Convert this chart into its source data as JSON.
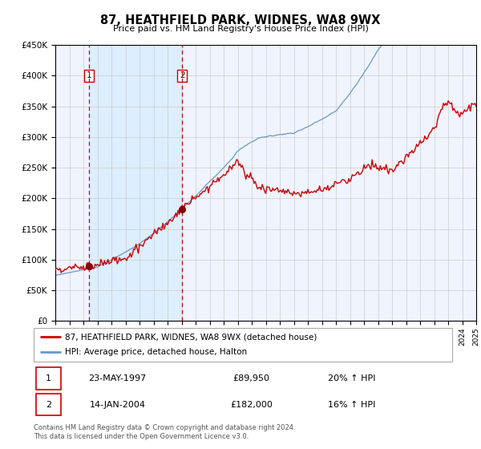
{
  "title": "87, HEATHFIELD PARK, WIDNES, WA8 9WX",
  "subtitle": "Price paid vs. HM Land Registry's House Price Index (HPI)",
  "legend_line1": "87, HEATHFIELD PARK, WIDNES, WA8 9WX (detached house)",
  "legend_line2": "HPI: Average price, detached house, Halton",
  "transaction1_date": "23-MAY-1997",
  "transaction1_price": 89950,
  "transaction1_hpi": "20% ↑ HPI",
  "transaction2_date": "14-JAN-2004",
  "transaction2_price": 182000,
  "transaction2_hpi": "16% ↑ HPI",
  "footnote1": "Contains HM Land Registry data © Crown copyright and database right 2024.",
  "footnote2": "This data is licensed under the Open Government Licence v3.0.",
  "price_line_color": "#cc0000",
  "hpi_line_color": "#6699cc",
  "vline_color": "#cc0000",
  "shade_color": "#ddeeff",
  "marker_color": "#880000",
  "background_color": "#ffffff",
  "chart_bg_color": "#f0f4ff",
  "ylim": [
    0,
    450000
  ],
  "yticks": [
    0,
    50000,
    100000,
    150000,
    200000,
    250000,
    300000,
    350000,
    400000,
    450000
  ],
  "xstart_year": 1995,
  "xend_year": 2025,
  "transaction1_year": 1997.38,
  "transaction2_year": 2004.04
}
